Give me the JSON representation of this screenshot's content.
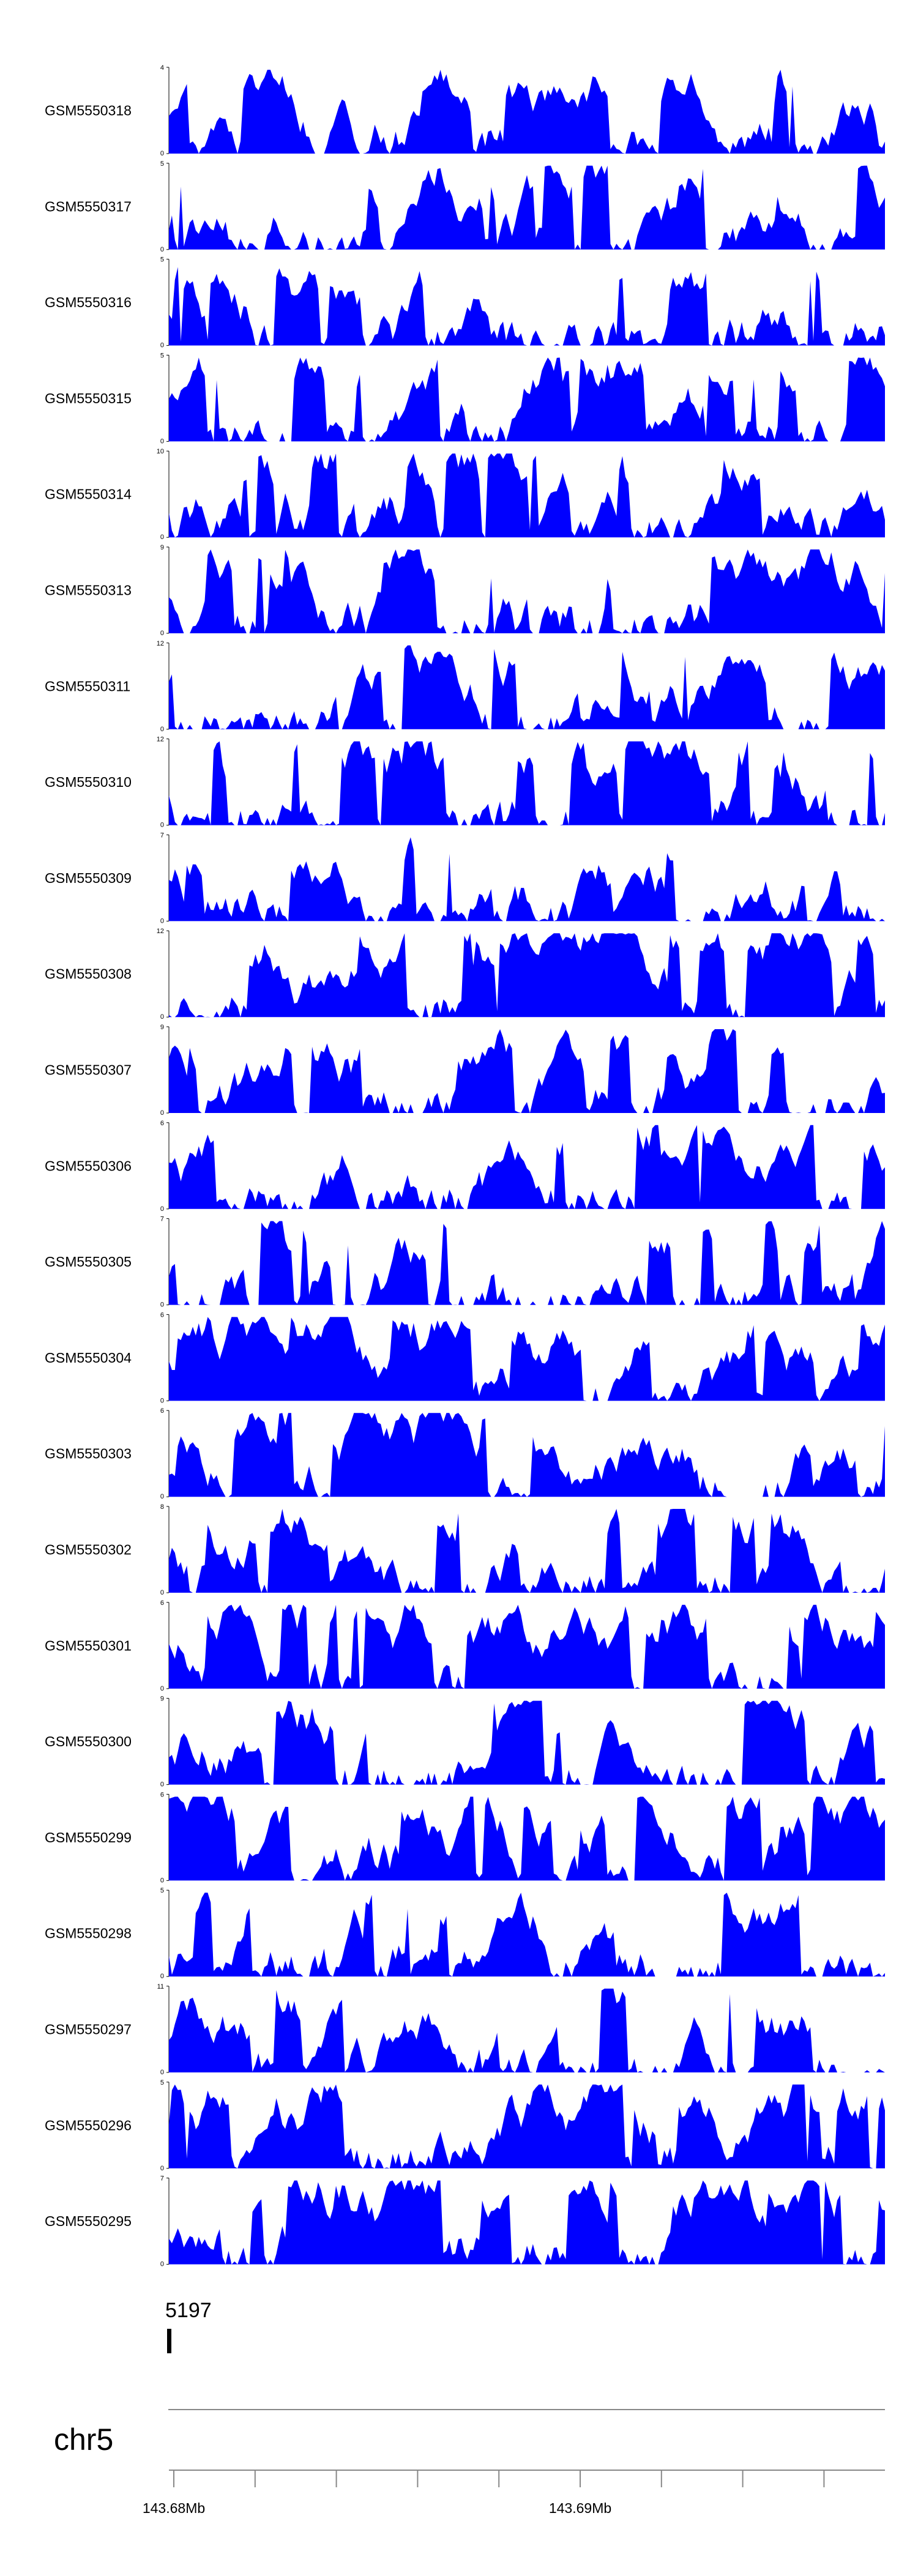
{
  "chart_data": {
    "type": "area",
    "title": "",
    "fill_color": "#0000ff",
    "tracks": [
      {
        "name": "GSM5550318",
        "ymax": 4,
        "ymin": 0
      },
      {
        "name": "GSM5550317",
        "ymax": 5,
        "ymin": 0
      },
      {
        "name": "GSM5550316",
        "ymax": 5,
        "ymin": 0
      },
      {
        "name": "GSM5550315",
        "ymax": 5,
        "ymin": 0
      },
      {
        "name": "GSM5550314",
        "ymax": 10,
        "ymin": 0
      },
      {
        "name": "GSM5550313",
        "ymax": 9,
        "ymin": 0
      },
      {
        "name": "GSM5550311",
        "ymax": 12,
        "ymin": 0
      },
      {
        "name": "GSM5550310",
        "ymax": 12,
        "ymin": 0
      },
      {
        "name": "GSM5550309",
        "ymax": 7,
        "ymin": 0
      },
      {
        "name": "GSM5550308",
        "ymax": 12,
        "ymin": 0
      },
      {
        "name": "GSM5550307",
        "ymax": 9,
        "ymin": 0
      },
      {
        "name": "GSM5550306",
        "ymax": 6,
        "ymin": 0
      },
      {
        "name": "GSM5550305",
        "ymax": 7,
        "ymin": 0
      },
      {
        "name": "GSM5550304",
        "ymax": 6,
        "ymin": 0
      },
      {
        "name": "GSM5550303",
        "ymax": 6,
        "ymin": 0
      },
      {
        "name": "GSM5550302",
        "ymax": 8,
        "ymin": 0
      },
      {
        "name": "GSM5550301",
        "ymax": 6,
        "ymin": 0
      },
      {
        "name": "GSM5550300",
        "ymax": 9,
        "ymin": 0
      },
      {
        "name": "GSM5550299",
        "ymax": 6,
        "ymin": 0
      },
      {
        "name": "GSM5550298",
        "ymax": 5,
        "ymin": 0
      },
      {
        "name": "GSM5550297",
        "ymax": 11,
        "ymin": 0
      },
      {
        "name": "GSM5550296",
        "ymax": 5,
        "ymin": 0
      },
      {
        "name": "GSM5550295",
        "ymax": 7,
        "ymin": 0
      }
    ],
    "gene": {
      "label": "5197"
    },
    "chromosome": "chr5",
    "x_axis": {
      "tick_labels": [
        {
          "label": "143.68Mb",
          "value": 143.68
        },
        {
          "label": "143.69Mb",
          "value": 143.69
        }
      ],
      "minor_tick_step_mb": 0.002,
      "xlim_mb": [
        143.68,
        143.6975
      ]
    }
  }
}
